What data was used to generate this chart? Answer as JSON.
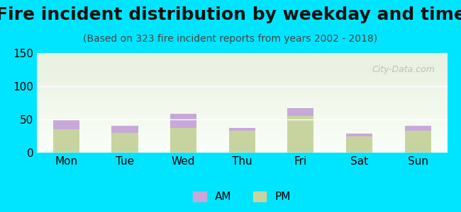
{
  "title": "Fire incident distribution by weekday and time",
  "subtitle": "(Based on 323 fire incident reports from years 2002 - 2018)",
  "days": [
    "Mon",
    "Tue",
    "Wed",
    "Thu",
    "Fri",
    "Sat",
    "Sun"
  ],
  "pm_values": [
    35,
    30,
    37,
    33,
    55,
    24,
    33
  ],
  "am_values": [
    15,
    10,
    21,
    4,
    12,
    5,
    7
  ],
  "am_color": "#c8a8d8",
  "pm_color": "#c8d4a0",
  "background_outer": "#00e5ff",
  "background_plot_top": "#e8f0e0",
  "background_plot_bottom": "#fafff8",
  "ylim": [
    0,
    150
  ],
  "yticks": [
    0,
    50,
    100,
    150
  ],
  "watermark": "City-Data.com",
  "legend_am": "AM",
  "legend_pm": "PM",
  "title_fontsize": 18,
  "subtitle_fontsize": 10,
  "tick_fontsize": 11,
  "bar_width": 0.45
}
